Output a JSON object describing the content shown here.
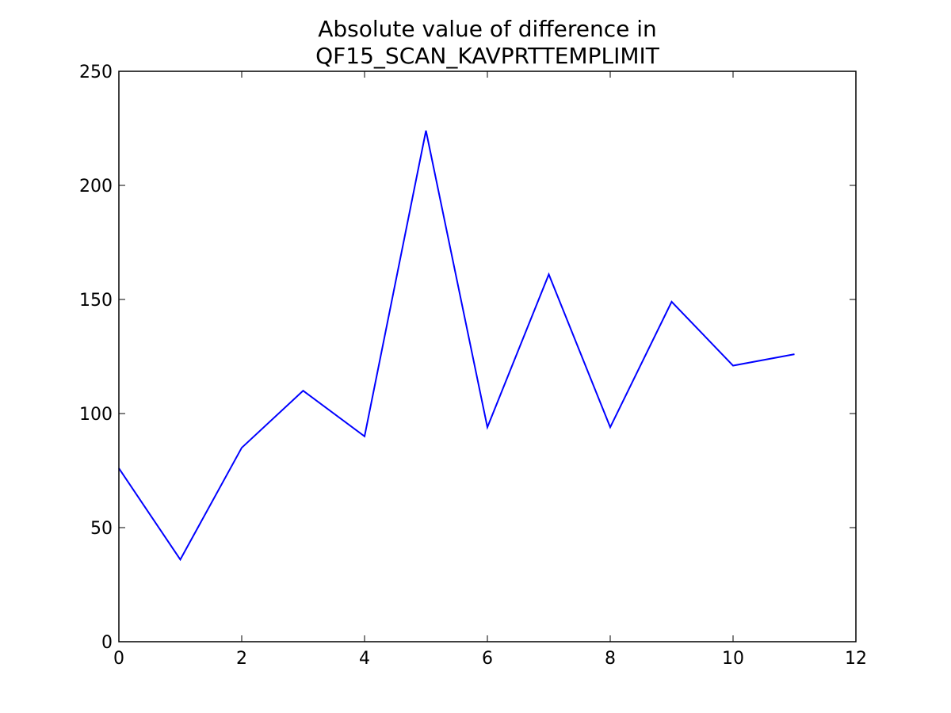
{
  "chart_data": {
    "type": "line",
    "title": [
      "Absolute value of difference in",
      "QF15_SCAN_KAVPRTTEMPLIMIT"
    ],
    "x": [
      0,
      1,
      2,
      3,
      4,
      5,
      6,
      7,
      8,
      9,
      10,
      11
    ],
    "series": [
      {
        "color": "#0000ff",
        "values": [
          76,
          36,
          85,
          110,
          90,
          224,
          94,
          161,
          94,
          149,
          121,
          126
        ]
      }
    ],
    "xlim": [
      0,
      12
    ],
    "xticks": [
      0,
      2,
      4,
      6,
      8,
      10,
      12
    ],
    "ylim": [
      0,
      250
    ],
    "yticks": [
      0,
      50,
      100,
      150,
      200,
      250
    ],
    "grid": false
  }
}
